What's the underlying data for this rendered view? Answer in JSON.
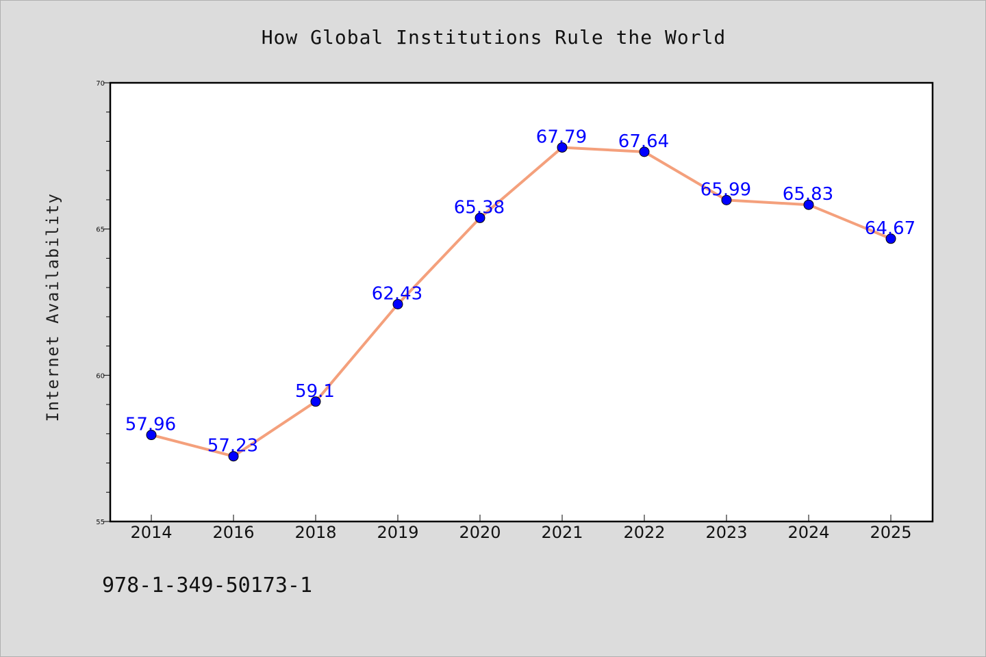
{
  "footer": {
    "code": "978-1-349-50173-1"
  },
  "colors": {
    "background": "#dcdcdc",
    "plot_background": "#ffffff",
    "line": "#f4a07c",
    "marker": "#0000ff",
    "label": "#0000ff"
  },
  "chart_data": {
    "type": "line",
    "title": "How Global Institutions Rule the World",
    "xlabel": "",
    "ylabel": "Internet Availability",
    "categories": [
      "2014",
      "2016",
      "2018",
      "2019",
      "2020",
      "2021",
      "2022",
      "2023",
      "2024",
      "2025"
    ],
    "series": [
      {
        "values": [
          57.96,
          57.23,
          59.1,
          62.43,
          65.38,
          67.79,
          67.64,
          65.99,
          65.83,
          64.67
        ],
        "labels": [
          "57.96",
          "57.23",
          "59.1",
          "62.43",
          "65.38",
          "67.79",
          "67.64",
          "65.99",
          "65.83",
          "64.67"
        ]
      }
    ],
    "ylim": [
      55,
      70
    ],
    "yticks": [
      "55",
      "60",
      "65",
      "70"
    ],
    "grid": false,
    "legend": "none"
  }
}
